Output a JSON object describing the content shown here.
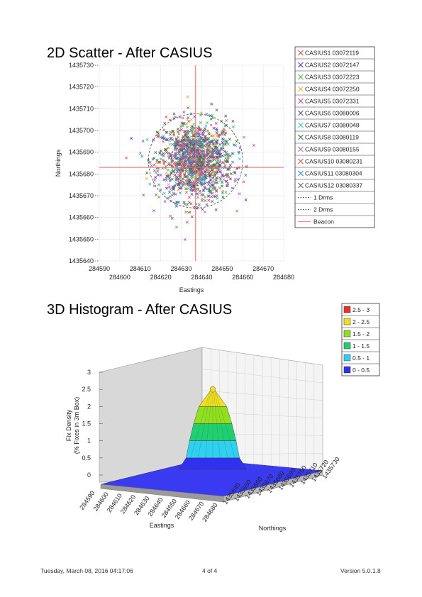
{
  "footer": {
    "left": "Tuesday, March 08, 2016 04:17:06",
    "center": "4 of 4",
    "right": "Version 5.0.1.8"
  },
  "chart_data": [
    {
      "type": "scatter",
      "title": "2D Scatter - After CASIUS",
      "xlabel": "Eastings",
      "ylabel": "Northings",
      "xlim": [
        284590,
        284680
      ],
      "ylim": [
        1435640,
        1435730
      ],
      "x_ticks_upper": [
        "284590",
        "284610",
        "284630",
        "284650",
        "284670"
      ],
      "x_ticks_lower": [
        "284600",
        "284620",
        "284640",
        "284660",
        "284680"
      ],
      "y_ticks": [
        "1435730",
        "1435720",
        "1435710",
        "1435700",
        "1435690",
        "1435680",
        "1435670",
        "1435660",
        "1435650",
        "1435640"
      ],
      "grid": true,
      "legend_position": "right",
      "beacon": {
        "x": 284637,
        "y": 1435683,
        "color": "#ff6060"
      },
      "rings": [
        {
          "name": "1 Drms",
          "radius": 12
        },
        {
          "name": "2 Drms",
          "radius": 23
        }
      ],
      "series": [
        {
          "name": "CASIUS1 03072119",
          "color": "#e04040"
        },
        {
          "name": "CASIUS2 03072147",
          "color": "#4040d0"
        },
        {
          "name": "CASIUS3 03072223",
          "color": "#40c040"
        },
        {
          "name": "CASIUS4 03072250",
          "color": "#e0b030"
        },
        {
          "name": "CASIUS5 03072331",
          "color": "#c040c0"
        },
        {
          "name": "CASIUS6 03080006",
          "color": "#5050a0"
        },
        {
          "name": "CASIUS7 03080048",
          "color": "#40c0c0"
        },
        {
          "name": "CASIUS8 03080119",
          "color": "#308030"
        },
        {
          "name": "CASIUS9 03080155",
          "color": "#a070b0"
        },
        {
          "name": "CASIUS10 03080231",
          "color": "#e05050"
        },
        {
          "name": "CASIUS11 03080304",
          "color": "#4080c0"
        },
        {
          "name": "CASIUS12 03080337",
          "color": "#606060"
        }
      ],
      "legend_extra": [
        {
          "label": "1 Drms",
          "style": "dash",
          "color": "#404040"
        },
        {
          "label": "2 Drms",
          "style": "dash",
          "color": "#404040"
        },
        {
          "label": "Beacon",
          "style": "line",
          "color": "#ff6060"
        }
      ]
    },
    {
      "type": "heatmap",
      "subtype": "3d-surface-histogram",
      "title": "3D Histogram - After CASIUS",
      "xlabel": "Eastings",
      "ylabel": "Northings",
      "zlabel": "Fix Density\n(% Fixes in 3m Box)",
      "zlim": [
        0,
        3
      ],
      "z_ticks": [
        "3",
        "2.5",
        "2",
        "1.5",
        "1",
        "0.5",
        "0"
      ],
      "x_ticks": [
        "284590",
        "284600",
        "284610",
        "284620",
        "284630",
        "284640",
        "284650",
        "284660",
        "284670",
        "284680"
      ],
      "y_ticks": [
        "1435640",
        "1435650",
        "1435660",
        "1435670",
        "1435680",
        "1435690",
        "1435700",
        "1435710",
        "1435720",
        "1435730"
      ],
      "peak": {
        "x": 284637,
        "y": 1435683,
        "value": 2.5
      },
      "legend": [
        {
          "label": "2.5 - 3",
          "color": "#e83030"
        },
        {
          "label": "2 - 2.5",
          "color": "#f0e020"
        },
        {
          "label": "1.5 - 2",
          "color": "#90e020"
        },
        {
          "label": "1 - 1.5",
          "color": "#20d070"
        },
        {
          "label": "0.5 - 1",
          "color": "#30d0f0"
        },
        {
          "label": "0 - 0.5",
          "color": "#3030f0"
        }
      ]
    }
  ]
}
